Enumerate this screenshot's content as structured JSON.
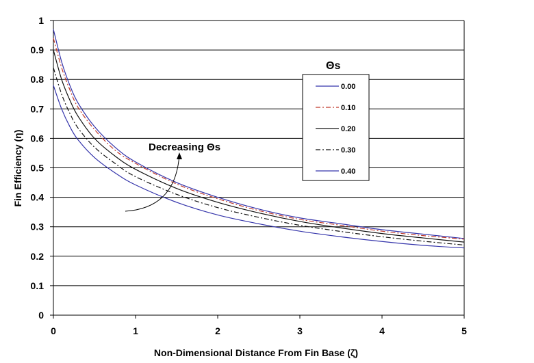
{
  "chart_data": {
    "type": "line",
    "title": "",
    "xlabel": "Non-Dimensional Distance From Fin Base  (ζ)",
    "ylabel": "Fin Efficiency (η)",
    "xlim": [
      0,
      5
    ],
    "ylim": [
      0,
      1
    ],
    "x_ticks": [
      "0",
      "1",
      "2",
      "3",
      "4",
      "5"
    ],
    "y_ticks": [
      "0",
      "0.1",
      "0.2",
      "0.3",
      "0.4",
      "0.5",
      "0.6",
      "0.7",
      "0.8",
      "0.9",
      "1"
    ],
    "grid": "horizontal",
    "legend": {
      "title": "Θs",
      "placement": "upper-right"
    },
    "annotation": "Decreasing Θs",
    "x": [
      0,
      0.1,
      0.2,
      0.3,
      0.5,
      0.75,
      1.0,
      1.5,
      2.0,
      2.5,
      3.0,
      3.5,
      4.0,
      4.5,
      5.0
    ],
    "series": [
      {
        "name": "0.00",
        "color": "#3333aa",
        "dash": "solid",
        "values": [
          0.97,
          0.86,
          0.78,
          0.72,
          0.64,
          0.57,
          0.52,
          0.45,
          0.4,
          0.36,
          0.33,
          0.31,
          0.29,
          0.275,
          0.26
        ]
      },
      {
        "name": "0.10",
        "color": "#c0392b",
        "dash": "dashdot",
        "values": [
          0.94,
          0.84,
          0.765,
          0.705,
          0.63,
          0.56,
          0.515,
          0.445,
          0.395,
          0.355,
          0.325,
          0.305,
          0.285,
          0.27,
          0.258
        ]
      },
      {
        "name": "0.20",
        "color": "#111111",
        "dash": "solid",
        "values": [
          0.9,
          0.8,
          0.73,
          0.675,
          0.6,
          0.54,
          0.495,
          0.43,
          0.383,
          0.347,
          0.318,
          0.296,
          0.277,
          0.262,
          0.248
        ]
      },
      {
        "name": "0.30",
        "color": "#111111",
        "dash": "dashdot",
        "values": [
          0.84,
          0.75,
          0.685,
          0.635,
          0.57,
          0.515,
          0.47,
          0.41,
          0.365,
          0.332,
          0.305,
          0.284,
          0.266,
          0.251,
          0.238
        ]
      },
      {
        "name": "0.40",
        "color": "#3333aa",
        "dash": "solid",
        "values": [
          0.78,
          0.7,
          0.64,
          0.595,
          0.535,
          0.483,
          0.442,
          0.383,
          0.34,
          0.31,
          0.285,
          0.266,
          0.25,
          0.237,
          0.228
        ]
      }
    ]
  }
}
